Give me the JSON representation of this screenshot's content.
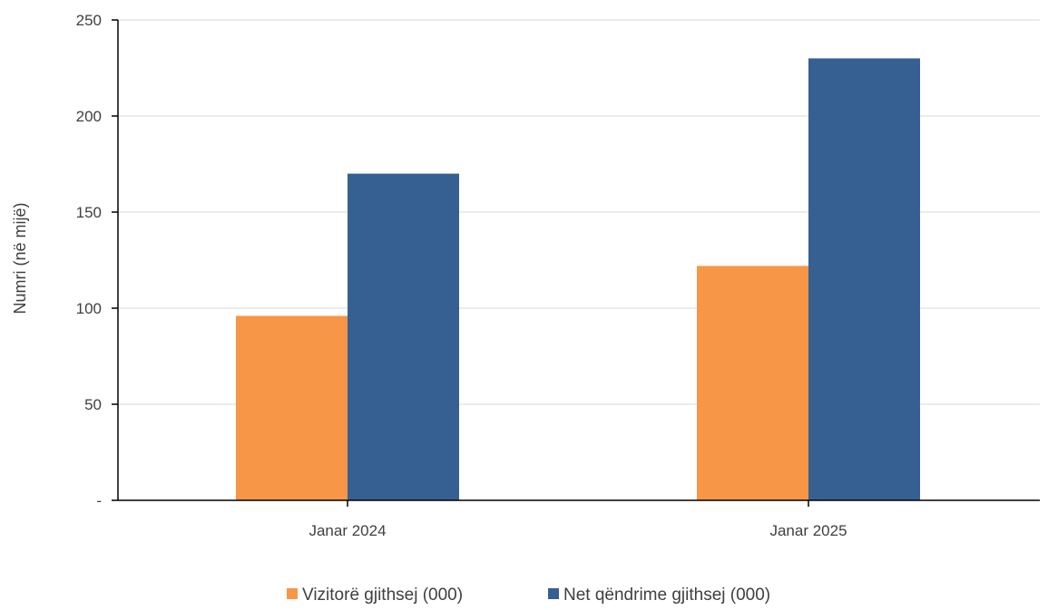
{
  "chart_data": {
    "type": "bar",
    "categories": [
      "Janar 2024",
      "Janar 2025"
    ],
    "series": [
      {
        "name": "Vizitorë gjithsej (000)",
        "values": [
          96,
          122
        ],
        "color": "#F79646"
      },
      {
        "name": "Net qëndrime gjithsej (000)",
        "values": [
          170,
          230
        ],
        "color": "#366092"
      }
    ],
    "ylabel": "Numri (në mijë)",
    "xlabel": "",
    "ylim": [
      0,
      250
    ],
    "yticks": [
      {
        "value": 0,
        "label": "-"
      },
      {
        "value": 50,
        "label": "50"
      },
      {
        "value": 100,
        "label": "100"
      },
      {
        "value": 150,
        "label": "150"
      },
      {
        "value": 200,
        "label": "200"
      },
      {
        "value": 250,
        "label": "250"
      }
    ],
    "grid": true,
    "legend": "bottom"
  }
}
